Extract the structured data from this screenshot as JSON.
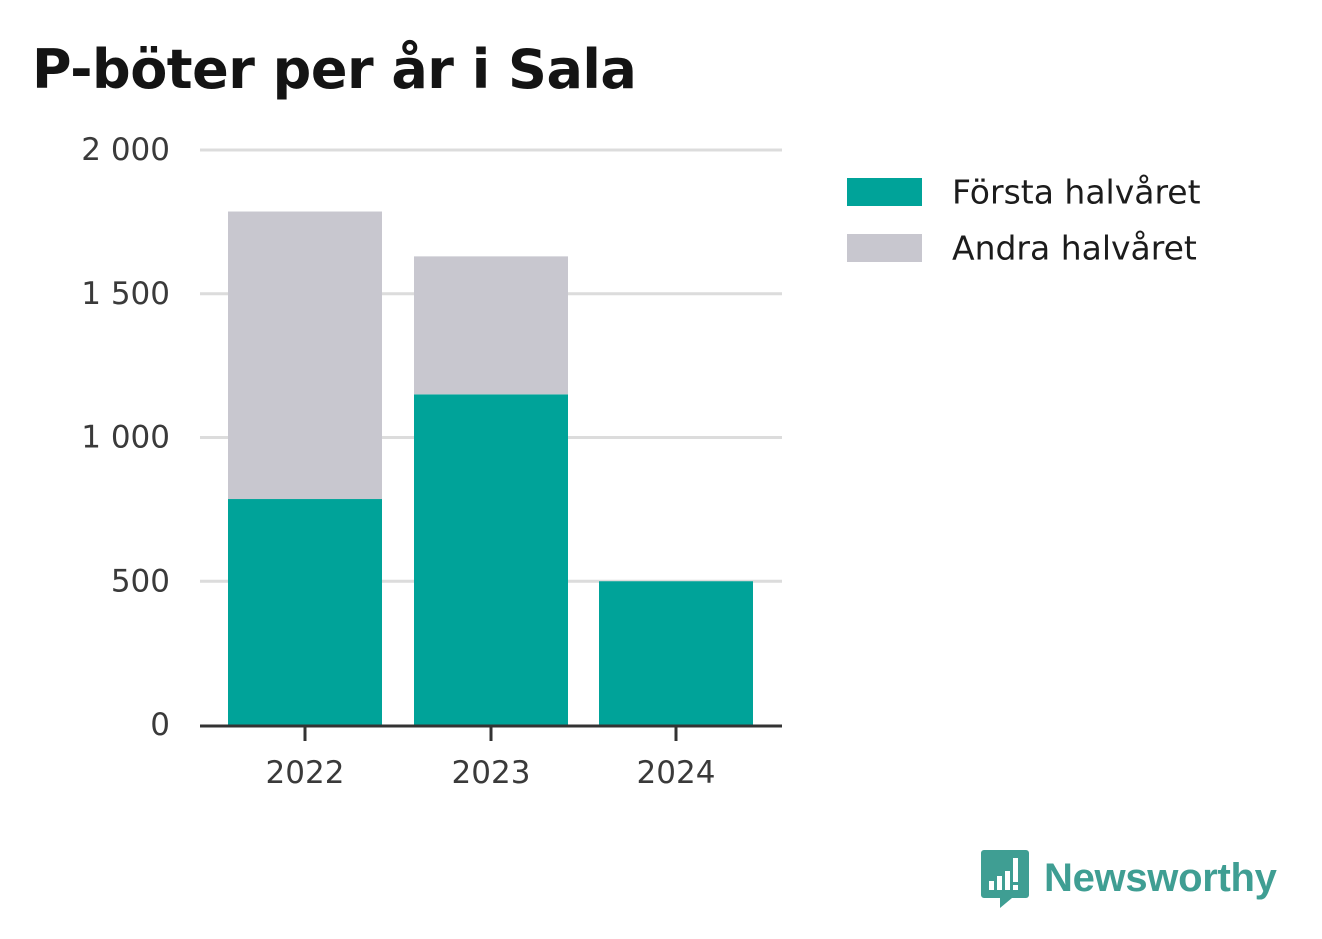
{
  "title": "P-böter per år i Sala",
  "colors": {
    "first_half": "#00a399",
    "second_half": "#c8c7cf",
    "grid": "#dcdcdc",
    "axis": "#333333",
    "brand": "#3f9e93"
  },
  "chart_data": {
    "type": "bar",
    "stacked": true,
    "title": "P-böter per år i Sala",
    "categories": [
      "2022",
      "2023",
      "2024"
    ],
    "series": [
      {
        "name": "Första halvåret",
        "values": [
          786,
          1150,
          500
        ]
      },
      {
        "name": "Andra halvåret",
        "values": [
          1000,
          480,
          0
        ]
      }
    ],
    "yticks": [
      0,
      500,
      1000,
      1500,
      2000
    ],
    "ytick_labels": [
      "0",
      "500",
      "1 000",
      "1 500",
      "2 000"
    ],
    "ylim": [
      0,
      2000
    ],
    "grid": true,
    "legend_position": "top-right"
  },
  "logo": {
    "text": "Newsworthy",
    "icon": "bar-chart-speech-bubble-icon"
  }
}
